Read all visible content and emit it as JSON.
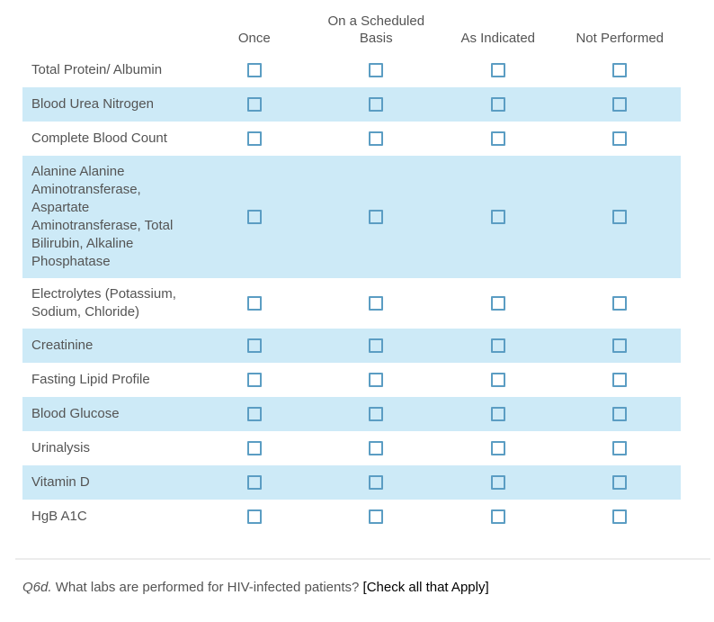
{
  "header": {
    "columns": [
      "Once",
      "On a Scheduled Basis",
      "As Indicated",
      "Not Performed"
    ]
  },
  "rows": [
    {
      "label": "Total Protein/ Albumin",
      "shaded": false,
      "checkboxes": [
        false,
        false,
        false,
        false
      ]
    },
    {
      "label": "Blood Urea Nitrogen",
      "shaded": true,
      "checkboxes": [
        false,
        false,
        false,
        false
      ]
    },
    {
      "label": "Complete Blood Count",
      "shaded": false,
      "checkboxes": [
        false,
        false,
        false,
        false
      ]
    },
    {
      "label": "Alanine Alanine Aminotransferase, Aspartate Aminotransferase, Total Bilirubin, Alkaline Phosphatase",
      "shaded": true,
      "checkboxes": [
        false,
        false,
        false,
        false
      ]
    },
    {
      "label": "Electrolytes (Potassium, Sodium, Chloride)",
      "shaded": false,
      "checkboxes": [
        false,
        false,
        false,
        false
      ]
    },
    {
      "label": "Creatinine",
      "shaded": true,
      "checkboxes": [
        false,
        false,
        false,
        false
      ]
    },
    {
      "label": "Fasting Lipid Profile",
      "shaded": false,
      "checkboxes": [
        false,
        false,
        false,
        false
      ]
    },
    {
      "label": "Blood Glucose",
      "shaded": true,
      "checkboxes": [
        false,
        false,
        false,
        false
      ]
    },
    {
      "label": "Urinalysis",
      "shaded": false,
      "checkboxes": [
        false,
        false,
        false,
        false
      ]
    },
    {
      "label": "Vitamin D",
      "shaded": true,
      "checkboxes": [
        false,
        false,
        false,
        false
      ]
    },
    {
      "label": "HgB A1C",
      "shaded": false,
      "checkboxes": [
        false,
        false,
        false,
        false
      ]
    }
  ],
  "question": {
    "number": "Q6d.",
    "text": " What labs are performed for HIV-infected patients? ",
    "suffix": "[Check all that Apply]"
  },
  "colors": {
    "shaded_row_bg": "#cdeaf7",
    "checkbox_border": "#5b9dc3",
    "body_text": "#545454",
    "suffix_text": "#000000",
    "divider": "#ececec"
  }
}
